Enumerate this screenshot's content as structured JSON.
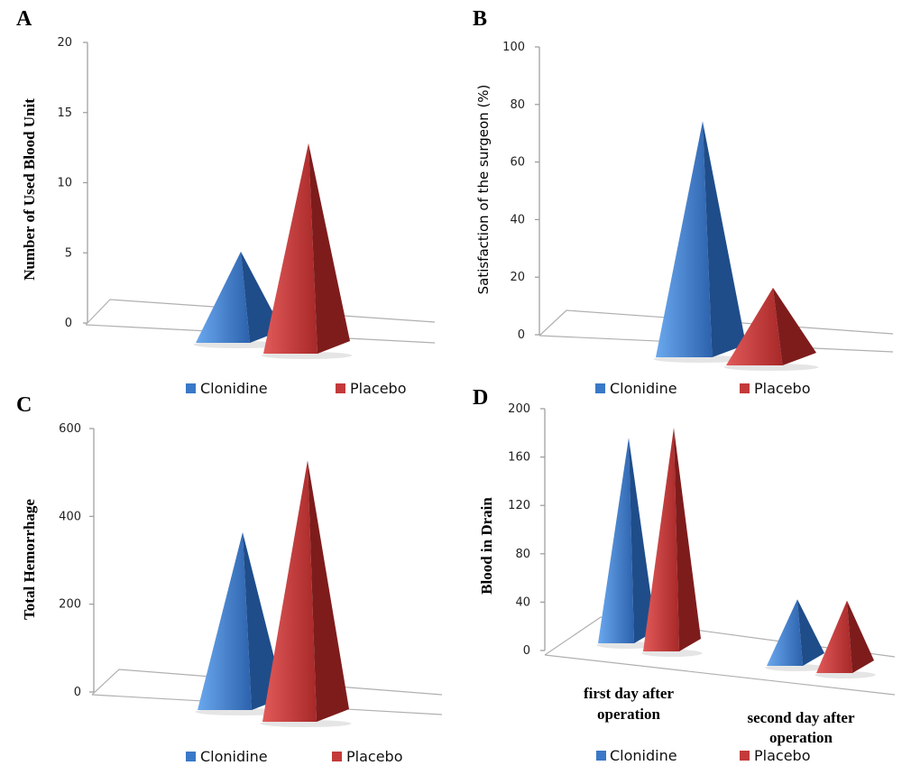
{
  "colors": {
    "clonidine": "#3a78c8",
    "clonidine_light": "#5a9be6",
    "clonidine_dark": "#1f4d8a",
    "placebo": "#c43a3a",
    "placebo_light": "#e05050",
    "placebo_dark": "#7e1c1c"
  },
  "legend": {
    "clonidine": "Clonidine",
    "placebo": "Placebo"
  },
  "chart_data": [
    {
      "panel": "A",
      "type": "bar",
      "ylabel": "Number of Used Blood Unit",
      "ylim": [
        0,
        20
      ],
      "yticks": [
        "0",
        "5",
        "10",
        "15",
        "20"
      ],
      "series": [
        {
          "name": "Clonidine",
          "values": [
            6.5
          ]
        },
        {
          "name": "Placebo",
          "values": [
            15
          ]
        }
      ]
    },
    {
      "panel": "B",
      "type": "bar",
      "ylabel": "Satisfaction of the surgeon (%)",
      "ylim": [
        0,
        100
      ],
      "yticks": [
        "0",
        "20",
        "40",
        "60",
        "80",
        "100"
      ],
      "series": [
        {
          "name": "Clonidine",
          "values": [
            82
          ]
        },
        {
          "name": "Placebo",
          "values": [
            27
          ]
        }
      ]
    },
    {
      "panel": "C",
      "type": "bar",
      "ylabel": "Total Hemorrhage",
      "ylim": [
        0,
        600
      ],
      "yticks": [
        "0",
        "200",
        "400",
        "600"
      ],
      "series": [
        {
          "name": "Clonidine",
          "values": [
            405
          ]
        },
        {
          "name": "Placebo",
          "values": [
            595
          ]
        }
      ]
    },
    {
      "panel": "D",
      "type": "bar",
      "ylabel": "Blood  in Drain",
      "ylim": [
        0,
        200
      ],
      "yticks": [
        "0",
        "40",
        "80",
        "120",
        "160",
        "200"
      ],
      "categories": [
        "first day after operation",
        "second day after operation"
      ],
      "series": [
        {
          "name": "Clonidine",
          "values": [
            170,
            55
          ]
        },
        {
          "name": "Placebo",
          "values": [
            185,
            60
          ]
        }
      ]
    }
  ]
}
